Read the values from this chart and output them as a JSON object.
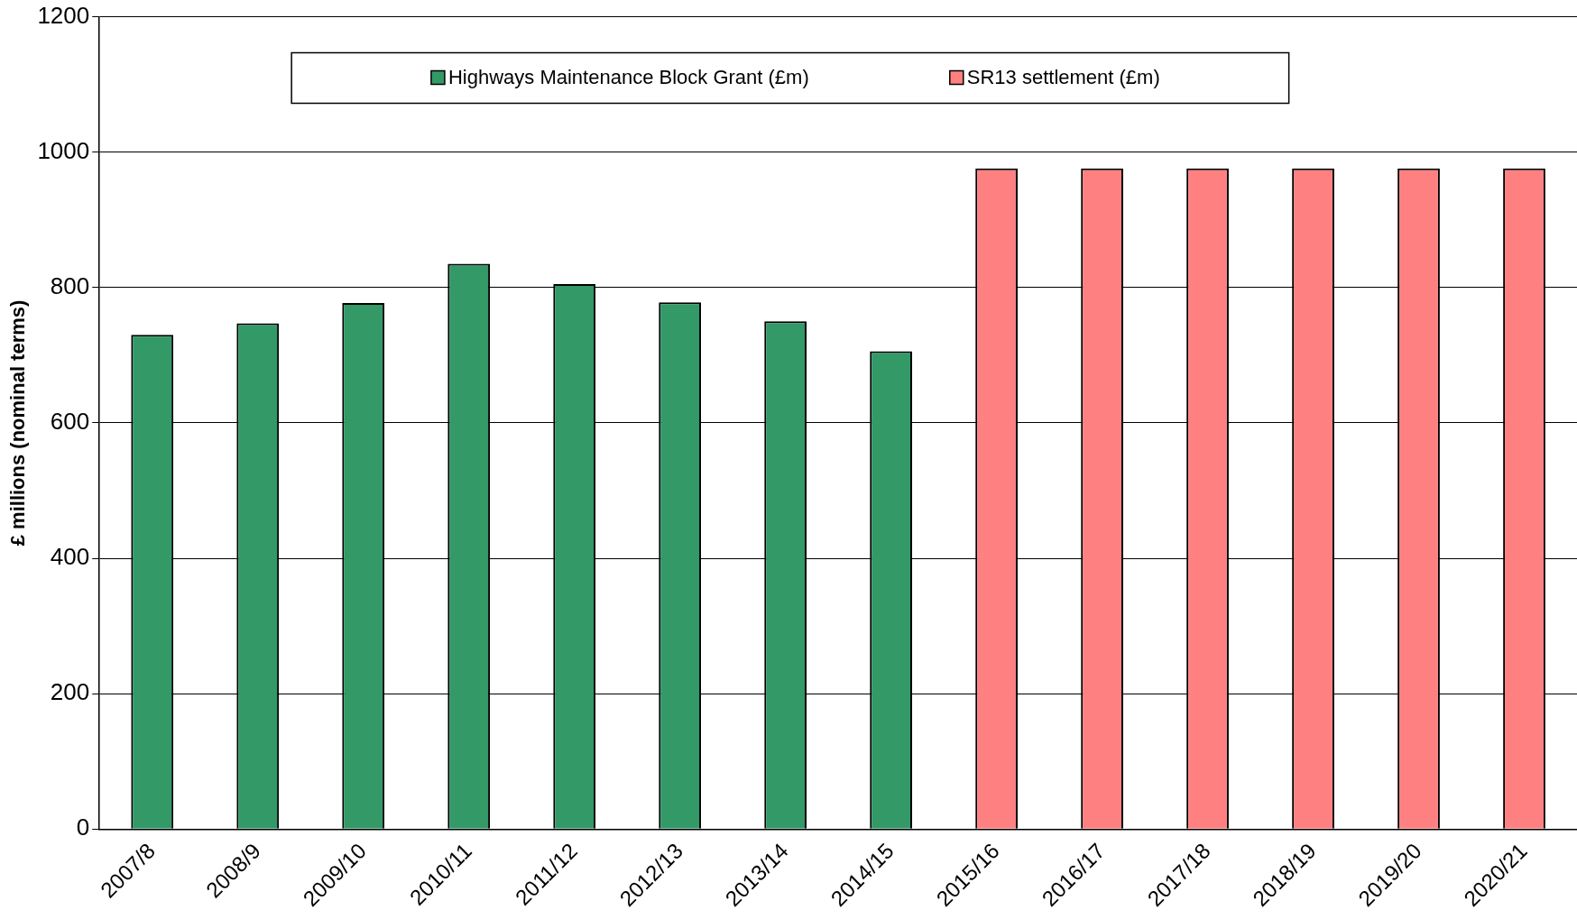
{
  "chart_data": {
    "type": "bar",
    "ylabel": "£ millions (nominal terms)",
    "categories": [
      "2007/8",
      "2008/9",
      "2009/10",
      "2010/11",
      "2011/12",
      "2012/13",
      "2013/14",
      "2014/15",
      "2015/16",
      "2016/17",
      "2017/18",
      "2018/19",
      "2019/20",
      "2020/21"
    ],
    "series": [
      {
        "name": "Highways Maintenance Block Grant (£m)",
        "color": "#339966",
        "values": [
          730,
          747,
          777,
          835,
          805,
          778,
          750,
          706,
          null,
          null,
          null,
          null,
          null,
          null
        ]
      },
      {
        "name": "SR13 settlement (£m)",
        "color": "#ff8080",
        "values": [
          null,
          null,
          null,
          null,
          null,
          null,
          null,
          null,
          976,
          976,
          976,
          976,
          976,
          976
        ]
      }
    ],
    "ylim": [
      0,
      1200
    ],
    "yticks": [
      0,
      200,
      400,
      600,
      800,
      1000,
      1200
    ],
    "grid": "y",
    "legend": "top"
  }
}
